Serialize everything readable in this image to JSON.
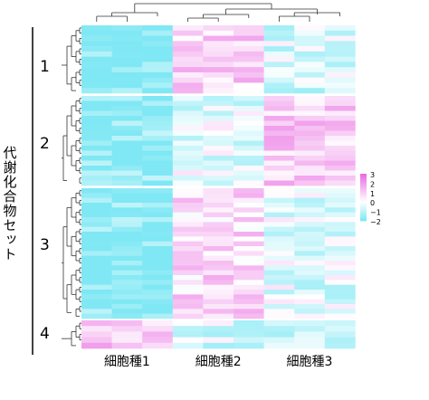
{
  "chart_data": {
    "type": "heatmap",
    "title": "",
    "ylabel": "代謝化合物セット",
    "xlabel": "",
    "clusters": [
      "1",
      "2",
      "3",
      "4"
    ],
    "cluster_rows": [
      13,
      18,
      27,
      5
    ],
    "groups": [
      "細胞種1",
      "細胞種2",
      "細胞種3"
    ],
    "columns_per_group": 3,
    "legend": {
      "ticks": [
        "3",
        "2",
        "1",
        "0",
        "−1",
        "−2"
      ],
      "min": -2,
      "max": 3,
      "low_color": "#7fe8f4",
      "mid_color": "#ffffff",
      "high_color": "#ea6ce2",
      "position": "right"
    },
    "group_value_profile": [
      [
        -1.9,
        0.9,
        -0.6
      ],
      [
        -1.8,
        -0.3,
        1.0
      ],
      [
        -1.9,
        0.8,
        -0.4
      ],
      [
        1.2,
        -0.6,
        -0.6
      ]
    ],
    "colors": {
      "low": "#7fe8f4",
      "mid": "#ffffff",
      "high": "#ea6ce2"
    }
  }
}
